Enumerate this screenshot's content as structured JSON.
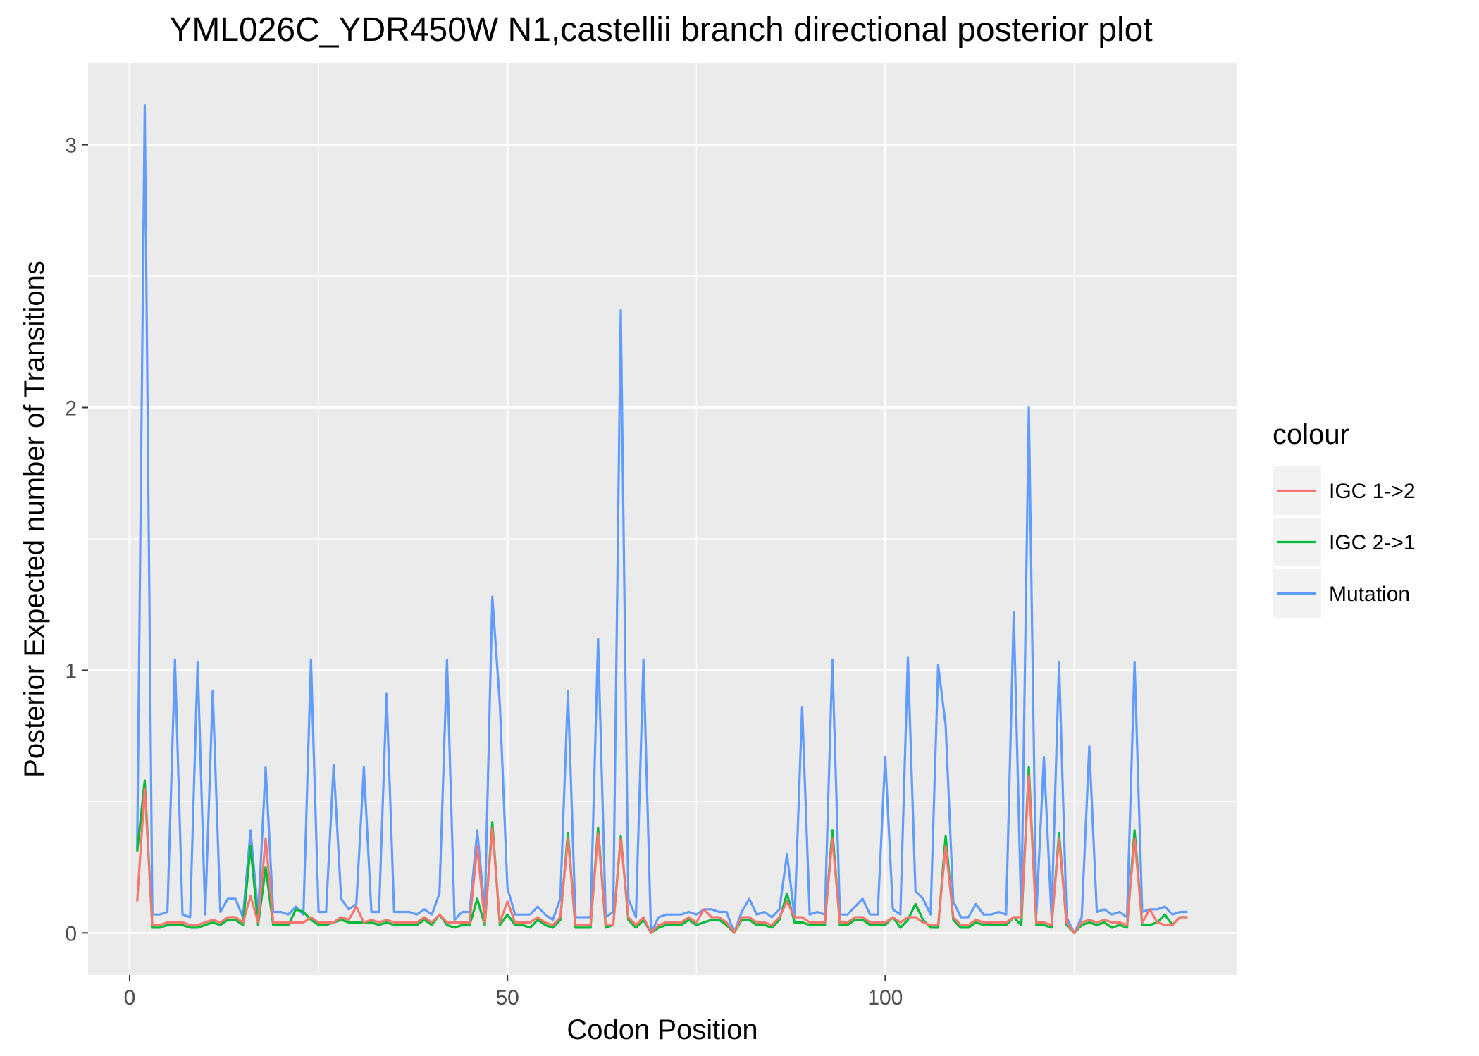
{
  "chart_data": {
    "type": "line",
    "title": "YML026C_YDR450W N1,castellii branch directional posterior plot",
    "xlabel": "Codon Position",
    "ylabel": "Posterior Expected number of Transitions",
    "xlim": [
      -5.5,
      146.5
    ],
    "ylim": [
      -0.16,
      3.31
    ],
    "xticks": [
      0,
      50,
      100
    ],
    "yticks": [
      0,
      1,
      2,
      3
    ],
    "grid": true,
    "legend": {
      "title": "colour",
      "placement": "right"
    },
    "x": [
      1,
      2,
      3,
      4,
      5,
      6,
      7,
      8,
      9,
      10,
      11,
      12,
      13,
      14,
      15,
      16,
      17,
      18,
      19,
      20,
      21,
      22,
      23,
      24,
      25,
      26,
      27,
      28,
      29,
      30,
      31,
      32,
      33,
      34,
      35,
      36,
      37,
      38,
      39,
      40,
      41,
      42,
      43,
      44,
      45,
      46,
      47,
      48,
      49,
      50,
      51,
      52,
      53,
      54,
      55,
      56,
      57,
      58,
      59,
      60,
      61,
      62,
      63,
      64,
      65,
      66,
      67,
      68,
      69,
      70,
      71,
      72,
      73,
      74,
      75,
      76,
      77,
      78,
      79,
      80,
      81,
      82,
      83,
      84,
      85,
      86,
      87,
      88,
      89,
      90,
      91,
      92,
      93,
      94,
      95,
      96,
      97,
      98,
      99,
      100,
      101,
      102,
      103,
      104,
      105,
      106,
      107,
      108,
      109,
      110,
      111,
      112,
      113,
      114,
      115,
      116,
      117,
      118,
      119,
      120,
      121,
      122,
      123,
      124,
      125,
      126,
      127,
      128,
      129,
      130,
      131,
      132,
      133,
      134,
      135,
      136,
      137,
      138,
      139,
      140
    ],
    "series": [
      {
        "name": "IGC 1->2",
        "color": "#F8766D",
        "values": [
          0.12,
          0.55,
          0.03,
          0.03,
          0.04,
          0.04,
          0.04,
          0.03,
          0.03,
          0.04,
          0.05,
          0.04,
          0.06,
          0.06,
          0.04,
          0.14,
          0.04,
          0.36,
          0.04,
          0.04,
          0.04,
          0.04,
          0.04,
          0.06,
          0.04,
          0.04,
          0.04,
          0.06,
          0.05,
          0.1,
          0.04,
          0.05,
          0.04,
          0.05,
          0.04,
          0.04,
          0.04,
          0.04,
          0.06,
          0.04,
          0.07,
          0.04,
          0.04,
          0.04,
          0.04,
          0.33,
          0.04,
          0.4,
          0.04,
          0.12,
          0.04,
          0.04,
          0.04,
          0.06,
          0.04,
          0.03,
          0.06,
          0.36,
          0.03,
          0.03,
          0.03,
          0.38,
          0.03,
          0.03,
          0.36,
          0.06,
          0.03,
          0.06,
          0.0,
          0.03,
          0.04,
          0.04,
          0.04,
          0.06,
          0.04,
          0.09,
          0.06,
          0.06,
          0.04,
          0.0,
          0.06,
          0.06,
          0.04,
          0.04,
          0.03,
          0.06,
          0.12,
          0.06,
          0.06,
          0.04,
          0.04,
          0.04,
          0.36,
          0.04,
          0.04,
          0.06,
          0.06,
          0.04,
          0.04,
          0.04,
          0.06,
          0.04,
          0.06,
          0.06,
          0.04,
          0.03,
          0.03,
          0.33,
          0.06,
          0.03,
          0.03,
          0.05,
          0.04,
          0.04,
          0.04,
          0.04,
          0.06,
          0.06,
          0.6,
          0.04,
          0.04,
          0.03,
          0.36,
          0.04,
          0.0,
          0.04,
          0.05,
          0.04,
          0.05,
          0.04,
          0.04,
          0.03,
          0.36,
          0.04,
          0.09,
          0.04,
          0.03,
          0.03,
          0.06,
          0.06
        ]
      },
      {
        "name": "IGC 2->1",
        "color": "#00BA38",
        "values": [
          0.31,
          0.58,
          0.02,
          0.02,
          0.03,
          0.03,
          0.03,
          0.02,
          0.02,
          0.03,
          0.04,
          0.03,
          0.05,
          0.05,
          0.03,
          0.33,
          0.03,
          0.25,
          0.03,
          0.03,
          0.03,
          0.09,
          0.08,
          0.05,
          0.03,
          0.03,
          0.04,
          0.05,
          0.04,
          0.04,
          0.04,
          0.04,
          0.03,
          0.04,
          0.03,
          0.03,
          0.03,
          0.03,
          0.05,
          0.03,
          0.07,
          0.03,
          0.02,
          0.03,
          0.03,
          0.13,
          0.03,
          0.42,
          0.03,
          0.07,
          0.03,
          0.03,
          0.02,
          0.05,
          0.03,
          0.02,
          0.05,
          0.38,
          0.02,
          0.02,
          0.02,
          0.4,
          0.02,
          0.03,
          0.37,
          0.05,
          0.02,
          0.05,
          0.0,
          0.02,
          0.03,
          0.03,
          0.03,
          0.05,
          0.03,
          0.04,
          0.05,
          0.05,
          0.03,
          0.0,
          0.05,
          0.05,
          0.03,
          0.03,
          0.02,
          0.05,
          0.15,
          0.04,
          0.04,
          0.03,
          0.03,
          0.03,
          0.39,
          0.03,
          0.03,
          0.05,
          0.05,
          0.03,
          0.03,
          0.03,
          0.06,
          0.02,
          0.05,
          0.11,
          0.05,
          0.02,
          0.02,
          0.37,
          0.05,
          0.02,
          0.02,
          0.04,
          0.03,
          0.03,
          0.03,
          0.03,
          0.06,
          0.03,
          0.63,
          0.03,
          0.03,
          0.02,
          0.38,
          0.03,
          0.0,
          0.03,
          0.04,
          0.03,
          0.04,
          0.02,
          0.03,
          0.02,
          0.39,
          0.03,
          0.03,
          0.04,
          0.07,
          0.03,
          0.06,
          0.06
        ]
      },
      {
        "name": "Mutation",
        "color": "#619CFF",
        "values": [
          0.32,
          3.15,
          0.07,
          0.07,
          0.08,
          1.04,
          0.07,
          0.06,
          1.03,
          0.07,
          0.92,
          0.08,
          0.13,
          0.13,
          0.06,
          0.39,
          0.07,
          0.63,
          0.08,
          0.08,
          0.07,
          0.1,
          0.07,
          1.04,
          0.08,
          0.08,
          0.64,
          0.13,
          0.09,
          0.11,
          0.63,
          0.08,
          0.08,
          0.91,
          0.08,
          0.08,
          0.08,
          0.07,
          0.09,
          0.07,
          0.15,
          1.04,
          0.05,
          0.08,
          0.08,
          0.39,
          0.08,
          1.28,
          0.87,
          0.17,
          0.07,
          0.07,
          0.07,
          0.1,
          0.07,
          0.05,
          0.13,
          0.92,
          0.06,
          0.06,
          0.06,
          1.12,
          0.06,
          0.08,
          2.37,
          0.13,
          0.06,
          1.04,
          0.0,
          0.06,
          0.07,
          0.07,
          0.07,
          0.08,
          0.07,
          0.09,
          0.09,
          0.08,
          0.08,
          0.0,
          0.08,
          0.13,
          0.07,
          0.08,
          0.06,
          0.09,
          0.3,
          0.06,
          0.86,
          0.07,
          0.08,
          0.07,
          1.04,
          0.07,
          0.07,
          0.1,
          0.13,
          0.07,
          0.07,
          0.67,
          0.09,
          0.07,
          1.05,
          0.16,
          0.13,
          0.07,
          1.02,
          0.79,
          0.12,
          0.06,
          0.06,
          0.11,
          0.07,
          0.07,
          0.08,
          0.07,
          1.22,
          0.07,
          2.0,
          0.07,
          0.67,
          0.06,
          1.03,
          0.06,
          0.0,
          0.06,
          0.71,
          0.08,
          0.09,
          0.07,
          0.08,
          0.06,
          1.03,
          0.08,
          0.09,
          0.09,
          0.1,
          0.07,
          0.08,
          0.08
        ]
      }
    ]
  }
}
